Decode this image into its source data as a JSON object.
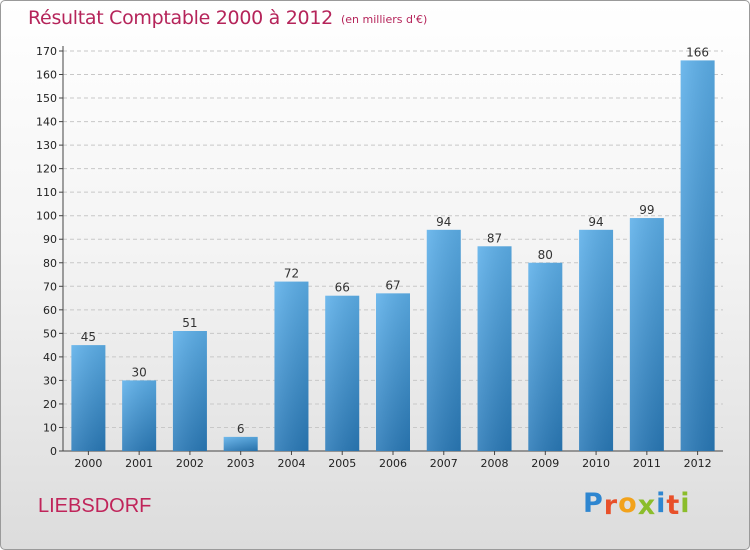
{
  "header": {
    "title": "Résultat Comptable 2000 à 2012",
    "subtitle": "(en milliers d'€)"
  },
  "commune": "LIEBSDORF",
  "logo": {
    "text": "Proxiti",
    "letters": [
      {
        "ch": "P",
        "color": "#2e86d0"
      },
      {
        "ch": "r",
        "color": "#e8502a"
      },
      {
        "ch": "o",
        "color": "#f2a21b"
      },
      {
        "ch": "x",
        "color": "#8bbd2b"
      },
      {
        "ch": "i",
        "color": "#2e86d0"
      },
      {
        "ch": "t",
        "color": "#e8502a"
      },
      {
        "ch": "i",
        "color": "#8bbd2b"
      }
    ]
  },
  "colors": {
    "title": "#b5245a",
    "bar_top": "#5db0ea",
    "bar_bottom": "#2a7ab8",
    "grid": "#c8c8c8"
  },
  "chart_data": {
    "type": "bar",
    "title": "Résultat Comptable 2000 à 2012",
    "subtitle": "(en milliers d'€)",
    "categories": [
      "2000",
      "2001",
      "2002",
      "2003",
      "2004",
      "2005",
      "2006",
      "2007",
      "2008",
      "2009",
      "2010",
      "2011",
      "2012"
    ],
    "values": [
      45,
      30,
      51,
      6,
      72,
      66,
      67,
      94,
      87,
      80,
      94,
      99,
      166
    ],
    "ylim": [
      0,
      170
    ],
    "yticks": [
      0,
      10,
      20,
      30,
      40,
      50,
      60,
      70,
      80,
      90,
      100,
      110,
      120,
      130,
      140,
      150,
      160,
      170
    ],
    "grid": "horizontal dashed",
    "legend": "none",
    "data_labels": true
  }
}
